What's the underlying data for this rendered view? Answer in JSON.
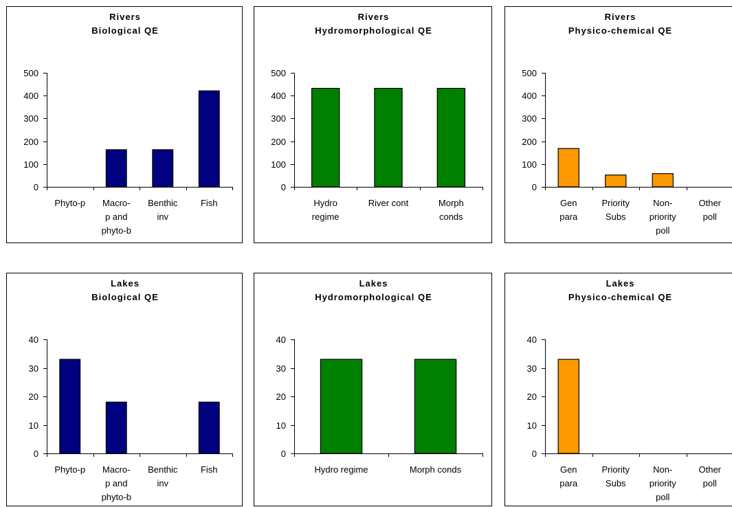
{
  "colors": {
    "biological": "#000080",
    "hydromorphological": "#008000",
    "physico_chemical": "#ff9900",
    "axis": "#000000"
  },
  "chart_data": [
    {
      "type": "bar",
      "title": [
        "Rivers",
        "Biological QE"
      ],
      "categories": [
        [
          "Phyto-p"
        ],
        [
          "Macro-",
          "p and",
          "phyto-b"
        ],
        [
          "Benthic",
          "inv"
        ],
        [
          "Fish"
        ]
      ],
      "values": [
        0,
        163,
        163,
        421
      ],
      "ylim": [
        0,
        500
      ],
      "yticks": [
        0,
        100,
        200,
        300,
        400,
        500
      ],
      "color": "#000080",
      "grid": false
    },
    {
      "type": "bar",
      "title": [
        "Rivers",
        "Hydromorphological QE"
      ],
      "categories": [
        [
          "Hydro",
          "regime"
        ],
        [
          "River cont"
        ],
        [
          "Morph",
          "conds"
        ]
      ],
      "values": [
        432,
        432,
        432
      ],
      "ylim": [
        0,
        500
      ],
      "yticks": [
        0,
        100,
        200,
        300,
        400,
        500
      ],
      "color": "#008000",
      "grid": false
    },
    {
      "type": "bar",
      "title": [
        "Rivers",
        "Physico-chemical QE"
      ],
      "categories": [
        [
          "Gen",
          "para"
        ],
        [
          "Priority",
          "Subs"
        ],
        [
          "Non-",
          "priority",
          "poll"
        ],
        [
          "Other",
          "poll"
        ]
      ],
      "values": [
        168,
        52,
        58,
        0
      ],
      "ylim": [
        0,
        500
      ],
      "yticks": [
        0,
        100,
        200,
        300,
        400,
        500
      ],
      "color": "#ff9900",
      "grid": false
    },
    {
      "type": "bar",
      "title": [
        "Lakes",
        "Biological QE"
      ],
      "categories": [
        [
          "Phyto-p"
        ],
        [
          "Macro-",
          "p and",
          "phyto-b"
        ],
        [
          "Benthic",
          "inv"
        ],
        [
          "Fish"
        ]
      ],
      "values": [
        33,
        18,
        0,
        18
      ],
      "ylim": [
        0,
        40
      ],
      "yticks": [
        0,
        10,
        20,
        30,
        40
      ],
      "color": "#000080",
      "grid": false
    },
    {
      "type": "bar",
      "title": [
        "Lakes",
        "Hydromorphological QE"
      ],
      "categories": [
        [
          "Hydro regime"
        ],
        [
          "Morph conds"
        ]
      ],
      "values": [
        33,
        33
      ],
      "ylim": [
        0,
        40
      ],
      "yticks": [
        0,
        10,
        20,
        30,
        40
      ],
      "color": "#008000",
      "grid": false
    },
    {
      "type": "bar",
      "title": [
        "Lakes",
        "Physico-chemical QE"
      ],
      "categories": [
        [
          "Gen",
          "para"
        ],
        [
          "Priority",
          "Subs"
        ],
        [
          "Non-",
          "priority",
          "poll"
        ],
        [
          "Other",
          "poll"
        ]
      ],
      "values": [
        33,
        0,
        0,
        0
      ],
      "ylim": [
        0,
        40
      ],
      "yticks": [
        0,
        10,
        20,
        30,
        40
      ],
      "color": "#ff9900",
      "grid": false
    }
  ]
}
